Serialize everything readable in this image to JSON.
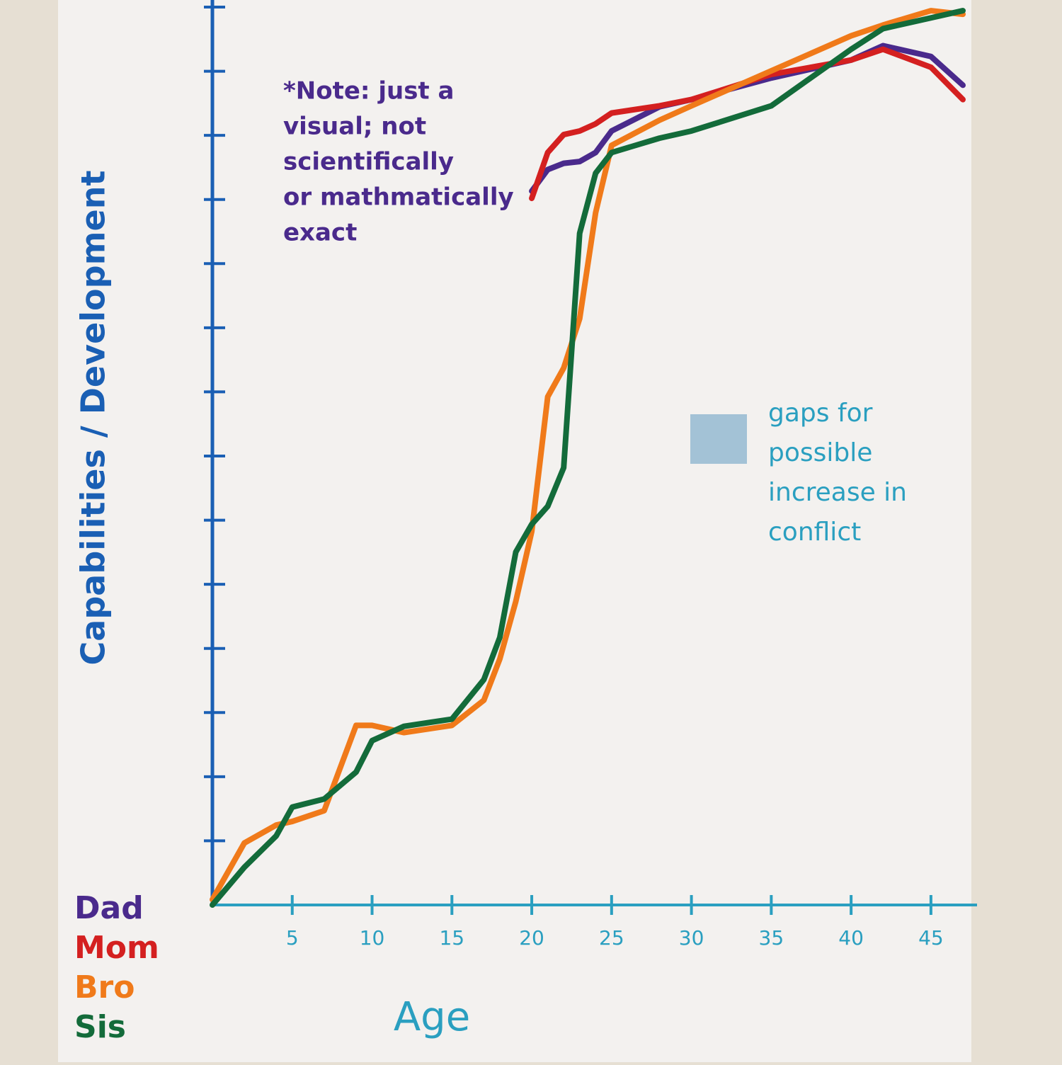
{
  "chart_data": {
    "type": "line",
    "y_label": "Capabilities / Development",
    "x_label": "Age",
    "note": [
      "*Note: just a",
      "visual; not",
      "scientifically",
      "or mathmatically",
      "exact"
    ],
    "annotation": [
      "gaps for",
      "possible",
      "increase in",
      "conflict"
    ],
    "x": [
      0,
      2,
      4,
      5,
      7,
      9,
      10,
      12,
      15,
      17,
      18,
      19,
      20,
      21,
      22,
      23,
      24,
      25,
      28,
      30,
      35,
      40,
      42,
      45,
      47
    ],
    "xlim": [
      0,
      47
    ],
    "xticks": [
      5,
      10,
      15,
      20,
      25,
      30,
      35,
      40,
      45
    ],
    "ylim": [
      0,
      100
    ],
    "series": [
      {
        "name": "Dad",
        "color": "#4a2a8c",
        "values": [
          null,
          null,
          null,
          null,
          null,
          null,
          null,
          null,
          null,
          null,
          null,
          null,
          79.5,
          81.9,
          82.6,
          82.8,
          83.8,
          86.2,
          88.9,
          89.7,
          92.1,
          94.1,
          95.7,
          94.5,
          91.3
        ]
      },
      {
        "name": "Mom",
        "color": "#d42020",
        "values": [
          null,
          null,
          null,
          null,
          null,
          null,
          null,
          null,
          null,
          null,
          null,
          null,
          78.7,
          83.8,
          85.8,
          86.2,
          87.0,
          88.2,
          89.0,
          89.7,
          92.5,
          94.1,
          95.3,
          93.3,
          89.7
        ]
      },
      {
        "name": "Bro",
        "color": "#f07a1a",
        "values": [
          0.6,
          6.9,
          8.9,
          9.3,
          10.5,
          20.0,
          20.0,
          19.2,
          20.0,
          22.8,
          27.4,
          33.8,
          41.6,
          56.6,
          59.8,
          65.3,
          77.1,
          84.6,
          87.4,
          89.0,
          92.9,
          96.8,
          98.0,
          99.6,
          99.2
        ]
      },
      {
        "name": "Sis",
        "color": "#136b3a",
        "values": [
          0,
          4.2,
          7.7,
          10.9,
          11.8,
          14.8,
          18.3,
          19.9,
          20.7,
          25.1,
          29.8,
          39.3,
          42.4,
          44.4,
          48.7,
          74.8,
          81.5,
          83.8,
          85.4,
          86.2,
          89.0,
          95.3,
          97.6,
          98.8,
          99.6
        ]
      }
    ]
  }
}
